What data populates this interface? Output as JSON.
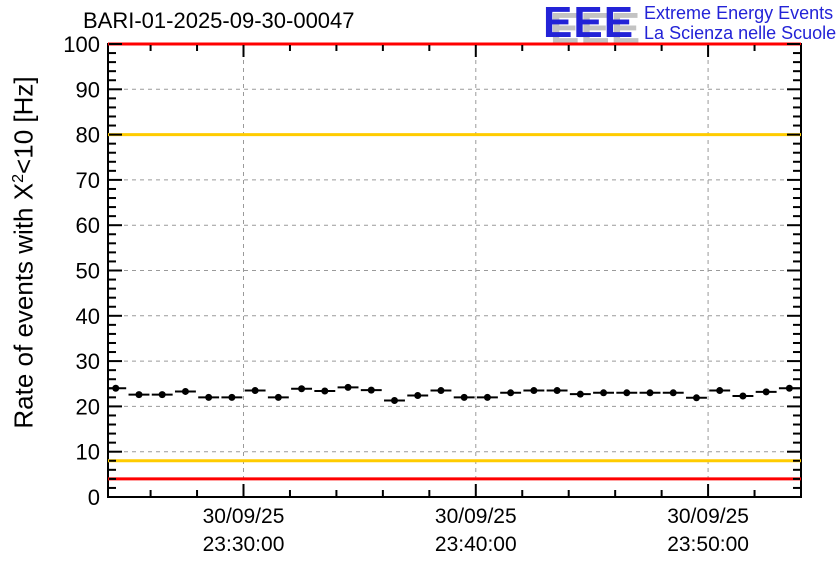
{
  "title": "BARI-01-2025-09-30-00047",
  "logo": {
    "acronym": "EEE",
    "line1": "Extreme Energy Events",
    "line2": "La Scienza nelle Scuole",
    "text_color": "#2323d7",
    "shadow_color": "#c3c3c3"
  },
  "chart_data": {
    "type": "scatter",
    "title": "BARI-01-2025-09-30-00047",
    "x_axis": {
      "domain": [
        "23:24:10",
        "23:54:00"
      ],
      "minor_step_seconds": 120,
      "major_step_seconds": 600,
      "ticks": [
        {
          "time": "23:30:00",
          "line1": "30/09/25",
          "line2": "23:30:00"
        },
        {
          "time": "23:40:00",
          "line1": "30/09/25",
          "line2": "23:40:00"
        },
        {
          "time": "23:50:00",
          "line1": "30/09/25",
          "line2": "23:50:00"
        }
      ]
    },
    "y_axis": {
      "label_prefix": "Rate of events with X",
      "label_sup": "2",
      "label_suffix": "<10 [Hz]",
      "min": 0,
      "max": 100,
      "minor_step": 2,
      "ticks": [
        {
          "value": 0,
          "label": "0"
        },
        {
          "value": 10,
          "label": "10"
        },
        {
          "value": 20,
          "label": "20"
        },
        {
          "value": 30,
          "label": "30"
        },
        {
          "value": 40,
          "label": "40"
        },
        {
          "value": 50,
          "label": "50"
        },
        {
          "value": 60,
          "label": "60"
        },
        {
          "value": 70,
          "label": "70"
        },
        {
          "value": 80,
          "label": "80"
        },
        {
          "value": 90,
          "label": "90"
        },
        {
          "value": 100,
          "label": "100"
        }
      ]
    },
    "grid": {
      "show": true,
      "color": "#9a9a9a",
      "dash": "4,4"
    },
    "reference_lines": [
      {
        "value": 100,
        "color": "#ff0000"
      },
      {
        "value": 80,
        "color": "#ffcc00"
      },
      {
        "value": 8,
        "color": "#ffcc00"
      },
      {
        "value": 4,
        "color": "#ff0000"
      }
    ],
    "marker": {
      "color": "#000000",
      "radius": 3.5
    },
    "x_error_halfwidth_seconds": 27,
    "points": [
      {
        "t": "23:24:30",
        "v": 24.0
      },
      {
        "t": "23:25:30",
        "v": 22.6
      },
      {
        "t": "23:26:30",
        "v": 22.6
      },
      {
        "t": "23:27:30",
        "v": 23.3
      },
      {
        "t": "23:28:30",
        "v": 22.0
      },
      {
        "t": "23:29:30",
        "v": 22.0
      },
      {
        "t": "23:30:30",
        "v": 23.5
      },
      {
        "t": "23:31:30",
        "v": 22.0
      },
      {
        "t": "23:32:30",
        "v": 23.9
      },
      {
        "t": "23:33:30",
        "v": 23.4
      },
      {
        "t": "23:34:30",
        "v": 24.2
      },
      {
        "t": "23:35:30",
        "v": 23.6
      },
      {
        "t": "23:36:30",
        "v": 21.3
      },
      {
        "t": "23:37:30",
        "v": 22.4
      },
      {
        "t": "23:38:30",
        "v": 23.5
      },
      {
        "t": "23:39:30",
        "v": 22.0
      },
      {
        "t": "23:40:30",
        "v": 22.0
      },
      {
        "t": "23:41:30",
        "v": 23.0
      },
      {
        "t": "23:42:30",
        "v": 23.5
      },
      {
        "t": "23:43:30",
        "v": 23.5
      },
      {
        "t": "23:44:30",
        "v": 22.7
      },
      {
        "t": "23:45:30",
        "v": 23.0
      },
      {
        "t": "23:46:30",
        "v": 23.0
      },
      {
        "t": "23:47:30",
        "v": 23.0
      },
      {
        "t": "23:48:30",
        "v": 23.0
      },
      {
        "t": "23:49:30",
        "v": 21.9
      },
      {
        "t": "23:50:30",
        "v": 23.5
      },
      {
        "t": "23:51:30",
        "v": 22.3
      },
      {
        "t": "23:52:30",
        "v": 23.2
      },
      {
        "t": "23:53:30",
        "v": 24.0
      }
    ]
  }
}
